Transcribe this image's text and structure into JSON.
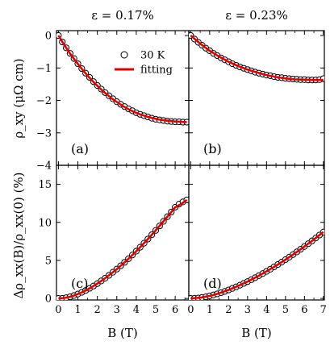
{
  "chart_data": [
    {
      "id": "a",
      "type": "scatter",
      "panel_label": "(a)",
      "column_title": "ε = 0.17%",
      "ylabel": "ρ_xy (μΩ cm)",
      "xlim": [
        -0.1,
        6.7
      ],
      "ylim": [
        -4,
        0.15
      ],
      "xticks": [
        0,
        1,
        2,
        3,
        4,
        5,
        6
      ],
      "yticks": [
        0,
        -1,
        -2,
        -3,
        -4
      ],
      "legend": {
        "position": "top-right",
        "data_label": "30 K",
        "fit_label": "fitting"
      },
      "series": [
        {
          "name": "30 K",
          "style": "open-circle",
          "x": [
            0.0,
            0.2,
            0.4,
            0.6,
            0.8,
            1.0,
            1.2,
            1.4,
            1.6,
            1.8,
            2.0,
            2.2,
            2.4,
            2.6,
            2.8,
            3.0,
            3.2,
            3.4,
            3.6,
            3.8,
            4.0,
            4.2,
            4.4,
            4.6,
            4.8,
            5.0,
            5.2,
            5.4,
            5.6,
            5.8,
            6.0,
            6.2,
            6.4,
            6.6
          ],
          "y": [
            0.0,
            -0.2,
            -0.38,
            -0.55,
            -0.71,
            -0.87,
            -1.02,
            -1.16,
            -1.29,
            -1.42,
            -1.54,
            -1.65,
            -1.76,
            -1.86,
            -1.95,
            -2.04,
            -2.12,
            -2.19,
            -2.26,
            -2.32,
            -2.38,
            -2.43,
            -2.47,
            -2.51,
            -2.55,
            -2.58,
            -2.6,
            -2.62,
            -2.64,
            -2.65,
            -2.66,
            -2.66,
            -2.67,
            -2.67
          ]
        },
        {
          "name": "fitting",
          "style": "line",
          "x": [
            0.0,
            0.3,
            0.6,
            0.9,
            1.2,
            1.5,
            1.8,
            2.1,
            2.4,
            2.7,
            3.0,
            3.3,
            3.6,
            3.9,
            4.2,
            4.5,
            4.8,
            5.1,
            5.4,
            5.7,
            6.0,
            6.3,
            6.6
          ],
          "y": [
            0.0,
            -0.29,
            -0.56,
            -0.8,
            -1.03,
            -1.24,
            -1.43,
            -1.61,
            -1.77,
            -1.92,
            -2.05,
            -2.17,
            -2.27,
            -2.36,
            -2.43,
            -2.49,
            -2.54,
            -2.58,
            -2.61,
            -2.63,
            -2.65,
            -2.66,
            -2.67
          ]
        }
      ]
    },
    {
      "id": "b",
      "type": "scatter",
      "panel_label": "(b)",
      "column_title": "ε = 0.23%",
      "xlim": [
        -0.1,
        7.05
      ],
      "ylim": [
        -4,
        0.15
      ],
      "xticks": [
        0,
        1,
        2,
        3,
        4,
        5,
        6,
        7
      ],
      "yticks": [
        0,
        -1,
        -2,
        -3,
        -4
      ],
      "series": [
        {
          "name": "30 K",
          "style": "open-circle",
          "x": [
            0.0,
            0.2,
            0.4,
            0.6,
            0.8,
            1.0,
            1.2,
            1.4,
            1.6,
            1.8,
            2.0,
            2.2,
            2.4,
            2.6,
            2.8,
            3.0,
            3.2,
            3.4,
            3.6,
            3.8,
            4.0,
            4.2,
            4.4,
            4.6,
            4.8,
            5.0,
            5.2,
            5.4,
            5.6,
            5.8,
            6.0,
            6.2,
            6.4,
            6.6,
            6.8,
            7.0
          ],
          "y": [
            0.0,
            -0.11,
            -0.21,
            -0.3,
            -0.39,
            -0.47,
            -0.55,
            -0.62,
            -0.69,
            -0.75,
            -0.81,
            -0.87,
            -0.92,
            -0.97,
            -1.01,
            -1.05,
            -1.09,
            -1.13,
            -1.16,
            -1.19,
            -1.22,
            -1.24,
            -1.27,
            -1.29,
            -1.3,
            -1.32,
            -1.33,
            -1.34,
            -1.35,
            -1.36,
            -1.36,
            -1.37,
            -1.37,
            -1.37,
            -1.36,
            -1.33
          ]
        },
        {
          "name": "fitting",
          "style": "line",
          "x": [
            0.0,
            0.5,
            1.0,
            1.5,
            2.0,
            2.5,
            3.0,
            3.5,
            4.0,
            4.5,
            5.0,
            5.5,
            6.0,
            6.5,
            7.0
          ],
          "y": [
            0.0,
            -0.25,
            -0.47,
            -0.65,
            -0.81,
            -0.94,
            -1.05,
            -1.14,
            -1.22,
            -1.28,
            -1.32,
            -1.35,
            -1.36,
            -1.37,
            -1.37
          ]
        }
      ]
    },
    {
      "id": "c",
      "type": "scatter",
      "panel_label": "(c)",
      "ylabel": "Δρ_xx(B)/ρ_xx(0) (%)",
      "xlabel": "B (T)",
      "xlim": [
        -0.1,
        6.7
      ],
      "ylim": [
        -0.2,
        17.5
      ],
      "xticks": [
        0,
        1,
        2,
        3,
        4,
        5,
        6
      ],
      "yticks": [
        0,
        5,
        10,
        15
      ],
      "series": [
        {
          "name": "30 K",
          "style": "open-circle",
          "x": [
            0.0,
            0.2,
            0.4,
            0.6,
            0.8,
            1.0,
            1.2,
            1.4,
            1.6,
            1.8,
            2.0,
            2.2,
            2.4,
            2.6,
            2.8,
            3.0,
            3.2,
            3.4,
            3.6,
            3.8,
            4.0,
            4.2,
            4.4,
            4.6,
            4.8,
            5.0,
            5.2,
            5.4,
            5.6,
            5.8,
            6.0,
            6.2,
            6.4,
            6.6
          ],
          "y": [
            0.0,
            0.02,
            0.1,
            0.22,
            0.38,
            0.58,
            0.8,
            1.05,
            1.33,
            1.63,
            1.95,
            2.3,
            2.66,
            3.04,
            3.44,
            3.86,
            4.3,
            4.75,
            5.22,
            5.71,
            6.21,
            6.73,
            7.26,
            7.81,
            8.37,
            8.94,
            9.53,
            10.13,
            10.74,
            11.36,
            11.99,
            12.4,
            12.7,
            12.95
          ]
        },
        {
          "name": "fitting",
          "style": "line",
          "x": [
            0.0,
            0.3,
            0.6,
            0.9,
            1.2,
            1.5,
            1.8,
            2.1,
            2.4,
            2.7,
            3.0,
            3.3,
            3.6,
            3.9,
            4.2,
            4.5,
            4.8,
            5.1,
            5.4,
            5.7,
            6.0,
            6.3,
            6.6
          ],
          "y": [
            0.0,
            0.05,
            0.22,
            0.48,
            0.8,
            1.18,
            1.63,
            2.12,
            2.66,
            3.24,
            3.86,
            4.52,
            5.22,
            5.96,
            6.73,
            7.54,
            8.37,
            9.23,
            10.13,
            11.05,
            11.99,
            12.4,
            12.95
          ]
        }
      ]
    },
    {
      "id": "d",
      "type": "scatter",
      "panel_label": "(d)",
      "xlabel": "B (T)",
      "xlim": [
        -0.1,
        7.05
      ],
      "ylim": [
        -0.2,
        17.5
      ],
      "xticks": [
        0,
        1,
        2,
        3,
        4,
        5,
        6,
        7
      ],
      "yticks": [
        0,
        5,
        10,
        15
      ],
      "series": [
        {
          "name": "30 K",
          "style": "open-circle",
          "x": [
            0.0,
            0.2,
            0.4,
            0.6,
            0.8,
            1.0,
            1.2,
            1.4,
            1.6,
            1.8,
            2.0,
            2.2,
            2.4,
            2.6,
            2.8,
            3.0,
            3.2,
            3.4,
            3.6,
            3.8,
            4.0,
            4.2,
            4.4,
            4.6,
            4.8,
            5.0,
            5.2,
            5.4,
            5.6,
            5.8,
            6.0,
            6.2,
            6.4,
            6.6,
            6.8,
            7.0
          ],
          "y": [
            0.0,
            0.02,
            0.06,
            0.13,
            0.22,
            0.33,
            0.46,
            0.6,
            0.76,
            0.93,
            1.12,
            1.32,
            1.53,
            1.75,
            1.98,
            2.22,
            2.47,
            2.73,
            3.0,
            3.27,
            3.56,
            3.85,
            4.15,
            4.46,
            4.78,
            5.1,
            5.43,
            5.77,
            6.12,
            6.47,
            6.83,
            7.2,
            7.57,
            7.95,
            8.34,
            8.73
          ]
        },
        {
          "name": "fitting",
          "style": "line",
          "x": [
            0.0,
            0.5,
            1.0,
            1.5,
            2.0,
            2.5,
            3.0,
            3.5,
            4.0,
            4.5,
            5.0,
            5.5,
            6.0,
            6.5,
            7.0
          ],
          "y": [
            0.0,
            0.1,
            0.33,
            0.68,
            1.12,
            1.64,
            2.22,
            2.86,
            3.56,
            4.3,
            5.1,
            5.94,
            6.83,
            7.76,
            8.73
          ]
        }
      ]
    }
  ],
  "colors": {
    "data_marker": "#000000",
    "fit_line": "#e00000"
  }
}
